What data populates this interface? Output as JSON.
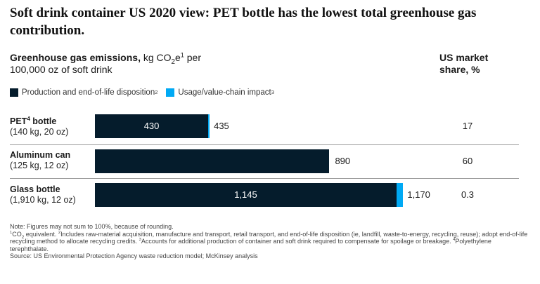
{
  "title": "Soft drink container US 2020 view: PET bottle has the lowest total greenhouse gas contribution.",
  "subtitle": {
    "bold_part": "Greenhouse gas emissions,",
    "unit_a": " kg CO",
    "unit_sub": "2",
    "unit_b": "e",
    "unit_sup": "1",
    "unit_c": " per",
    "line2": "100,000 oz of soft drink"
  },
  "share_header": {
    "line1": "US market",
    "line2": "share, %"
  },
  "legend": {
    "production": {
      "label": "Production and end-of-life disposition",
      "sup": "2",
      "color": "#051c2c"
    },
    "usage": {
      "label": "Usage/value-chain impact",
      "sup": "3",
      "color": "#00a9f4"
    }
  },
  "chart_data": {
    "type": "bar",
    "orientation": "horizontal",
    "stacked": true,
    "categories": [
      "PET bottle",
      "Aluminum can",
      "Glass bottle"
    ],
    "series": [
      {
        "name": "Production and end-of-life disposition",
        "values": [
          430,
          890,
          1145
        ]
      },
      {
        "name": "Usage/value-chain impact",
        "values": [
          5,
          0,
          25
        ]
      }
    ],
    "totals": [
      435,
      890,
      1170
    ],
    "market_share_pct": [
      17,
      60,
      0.3
    ],
    "xlim": [
      0,
      1200
    ]
  },
  "rows": [
    {
      "name": "PET",
      "name_sup": "4",
      "name_rest": " bottle",
      "spec": "(140 kg, 20 oz)",
      "prod_label": "430",
      "total_label": "435",
      "share_label": "17"
    },
    {
      "name": "Aluminum can",
      "name_sup": "",
      "name_rest": "",
      "spec": "(125 kg, 12 oz)",
      "prod_label": "",
      "total_label": "890",
      "share_label": "60"
    },
    {
      "name": "Glass bottle",
      "name_sup": "",
      "name_rest": "",
      "spec": "(1,910 kg, 12 oz)",
      "prod_label": "1,145",
      "total_label": "1,170",
      "share_label": "0.3"
    }
  ],
  "notes": {
    "line1": "Note: Figures may not sum to 100%, because of rounding.",
    "fn1_sup": "1",
    "fn1_a": "CO",
    "fn1_sub": "2",
    "fn1_b": " equivalent. ",
    "fn2_sup": "2",
    "fn2": "Includes raw-material acquisition, manufacture and transport, retail transport, and end-of-life disposition (ie, landfill, waste-to-energy, recycling, reuse); adopt end-of-life recycling method to allocate recycling credits. ",
    "fn3_sup": "3",
    "fn3": "Accounts for additional production of container and soft drink required to compensate for spoilage or breakage. ",
    "fn4_sup": "4",
    "fn4": "Polyethylene terephthalate.",
    "source": "Source: US Environmental Protection Agency waste reduction model; McKinsey analysis"
  }
}
